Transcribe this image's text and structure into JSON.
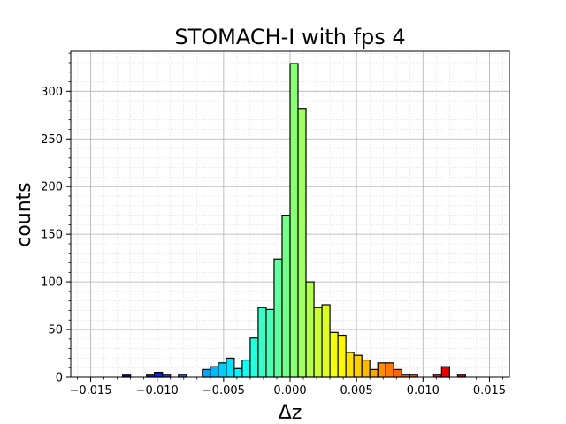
{
  "chart_data": {
    "type": "bar",
    "title": "STOMACH-I with fps 4",
    "xlabel": "Δz",
    "ylabel": "counts",
    "xlim": [
      -0.0165,
      0.0165
    ],
    "ylim": [
      0,
      342
    ],
    "grid": true,
    "grid_minor": true,
    "colormap": "jet",
    "bin_width": 0.0006,
    "xticks": [
      -0.015,
      -0.01,
      -0.005,
      0.0,
      0.005,
      0.01,
      0.015
    ],
    "xtick_labels": [
      "−0.015",
      "−0.010",
      "−0.005",
      "0.000",
      "0.005",
      "0.010",
      "0.015"
    ],
    "yticks": [
      0,
      50,
      100,
      150,
      200,
      250,
      300
    ],
    "ytick_labels": [
      "0",
      "50",
      "100",
      "150",
      "200",
      "250",
      "300"
    ],
    "bin_edges_start": -0.015,
    "values": [
      0,
      0,
      0,
      0,
      3,
      0,
      0,
      3,
      5,
      3,
      0,
      3,
      0,
      0,
      8,
      11,
      15,
      20,
      9,
      18,
      41,
      73,
      71,
      124,
      170,
      329,
      282,
      100,
      73,
      76,
      47,
      44,
      26,
      23,
      18,
      8,
      15,
      15,
      8,
      3,
      3,
      0,
      0,
      3,
      11,
      0,
      3,
      0,
      0,
      0
    ]
  }
}
